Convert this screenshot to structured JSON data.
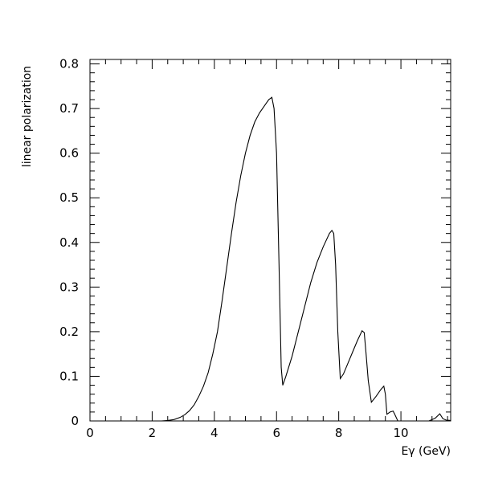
{
  "chart_data": {
    "type": "line",
    "title": "",
    "xlabel": "Eγ (GeV)",
    "ylabel": "linear polarization",
    "xlim": [
      0,
      11.6
    ],
    "ylim": [
      0,
      0.81
    ],
    "x_ticks": [
      0,
      2,
      4,
      6,
      8,
      10
    ],
    "x_tick_labels": [
      "0",
      "2",
      "4",
      "6",
      "8",
      "10"
    ],
    "y_ticks": [
      0,
      0.1,
      0.2,
      0.3,
      0.4,
      0.5,
      0.6,
      0.7,
      0.8
    ],
    "y_tick_labels": [
      "0",
      "0.1",
      "0.2",
      "0.3",
      "0.4",
      "0.5",
      "0.6",
      "0.7",
      "0.8"
    ],
    "grid": false,
    "legend": "none",
    "line_color": "#000000",
    "series": [
      {
        "x": [
          2.3,
          2.5,
          2.7,
          2.9,
          3.05,
          3.2,
          3.35,
          3.5,
          3.65,
          3.8,
          3.95,
          4.1,
          4.25,
          4.4,
          4.55,
          4.7,
          4.85,
          5.0,
          5.15,
          5.3,
          5.45,
          5.6,
          5.75,
          5.85,
          5.92,
          6.0,
          6.08,
          6.15,
          6.2,
          6.3,
          6.5,
          6.7,
          6.9,
          7.1,
          7.3,
          7.5,
          7.7,
          7.78,
          7.84,
          7.9,
          7.97,
          8.05,
          8.15,
          8.3,
          8.45,
          8.6,
          8.75,
          8.82,
          8.88,
          8.95,
          9.05,
          9.2,
          9.35,
          9.45,
          9.5,
          9.55,
          9.65,
          9.75,
          9.8,
          9.9,
          10.5,
          10.9,
          11.1,
          11.25,
          11.35,
          11.45,
          11.6
        ],
        "y": [
          0.0,
          0.001,
          0.003,
          0.008,
          0.014,
          0.023,
          0.036,
          0.055,
          0.078,
          0.108,
          0.15,
          0.2,
          0.27,
          0.345,
          0.42,
          0.49,
          0.55,
          0.6,
          0.64,
          0.67,
          0.69,
          0.705,
          0.72,
          0.725,
          0.7,
          0.6,
          0.35,
          0.12,
          0.08,
          0.1,
          0.145,
          0.2,
          0.255,
          0.31,
          0.355,
          0.39,
          0.42,
          0.427,
          0.42,
          0.35,
          0.2,
          0.095,
          0.105,
          0.13,
          0.155,
          0.18,
          0.202,
          0.198,
          0.15,
          0.09,
          0.042,
          0.055,
          0.07,
          0.078,
          0.06,
          0.015,
          0.02,
          0.022,
          0.015,
          0.0,
          0.0,
          0.0,
          0.006,
          0.016,
          0.005,
          0.002,
          0.001
        ]
      }
    ]
  }
}
